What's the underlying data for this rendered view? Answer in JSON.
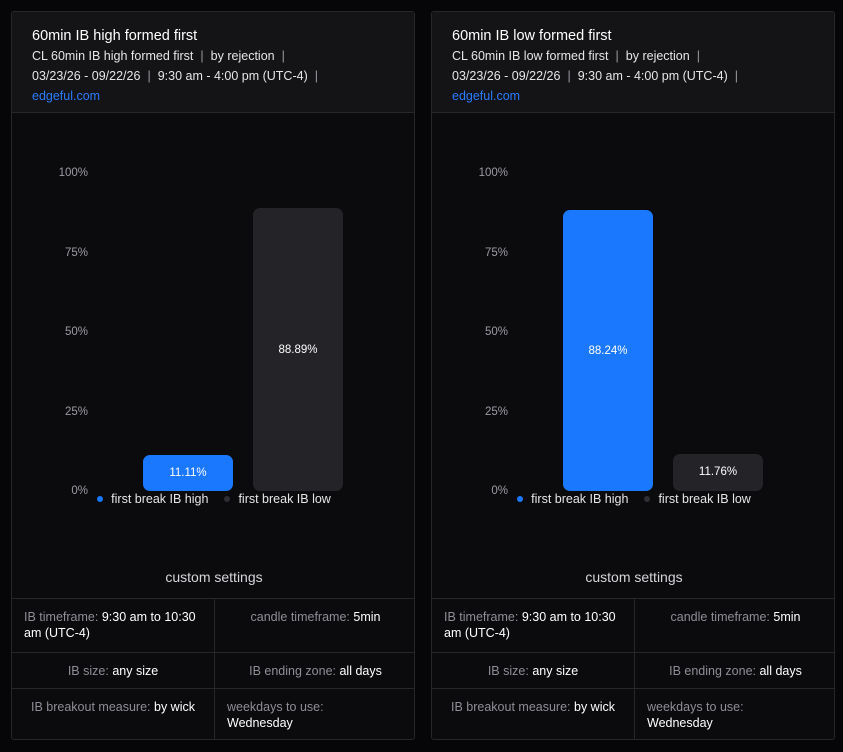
{
  "colors": {
    "accent": "#1a78ff",
    "bar_dark": "#232328",
    "link": "#2b7bff"
  },
  "cards": [
    {
      "title": "60min IB high formed first",
      "meta1": [
        "CL 60min IB high formed first",
        "by rejection"
      ],
      "meta2": [
        "03/23/26 - 09/22/26",
        "9:30 am - 4:00 pm (UTC-4)"
      ],
      "link": "edgeful.com",
      "settings_title": "custom settings",
      "settings": {
        "ib_timeframe": {
          "label": "IB timeframe:",
          "value": "9:30 am to 10:30 am (UTC-4)"
        },
        "candle_timeframe": {
          "label": "candle timeframe:",
          "value": "5min"
        },
        "ib_size": {
          "label": "IB size:",
          "value": "any size"
        },
        "ib_ending_zone": {
          "label": "IB ending zone:",
          "value": "all days"
        },
        "ib_breakout_measure": {
          "label": "IB breakout measure:",
          "value": "by wick"
        },
        "weekdays": {
          "label": "weekdays to use:",
          "value": "Wednesday"
        }
      }
    },
    {
      "title": "60min IB low formed first",
      "meta1": [
        "CL 60min IB low formed first",
        "by rejection"
      ],
      "meta2": [
        "03/23/26 - 09/22/26",
        "9:30 am - 4:00 pm (UTC-4)"
      ],
      "link": "edgeful.com",
      "settings_title": "custom settings",
      "settings": {
        "ib_timeframe": {
          "label": "IB timeframe:",
          "value": "9:30 am to 10:30 am (UTC-4)"
        },
        "candle_timeframe": {
          "label": "candle timeframe:",
          "value": "5min"
        },
        "ib_size": {
          "label": "IB size:",
          "value": "any size"
        },
        "ib_ending_zone": {
          "label": "IB ending zone:",
          "value": "all days"
        },
        "ib_breakout_measure": {
          "label": "IB breakout measure:",
          "value": "by wick"
        },
        "weekdays": {
          "label": "weekdays to use:",
          "value": "Wednesday"
        }
      }
    }
  ],
  "chart_data": [
    {
      "type": "bar",
      "categories": [
        "first break IB high",
        "first break IB low"
      ],
      "values": [
        11.11,
        88.89
      ],
      "data_labels": [
        "11.11%",
        "88.89%"
      ],
      "colors": [
        "#1a78ff",
        "#232328"
      ],
      "yticks": [
        "0%",
        "25%",
        "50%",
        "75%",
        "100%"
      ],
      "ylim": [
        0,
        100
      ],
      "legend": [
        "first break IB high",
        "first break IB low"
      ],
      "legend_position": "bottom",
      "grid": false
    },
    {
      "type": "bar",
      "categories": [
        "first break IB high",
        "first break IB low"
      ],
      "values": [
        88.24,
        11.76
      ],
      "data_labels": [
        "88.24%",
        "11.76%"
      ],
      "colors": [
        "#1a78ff",
        "#232328"
      ],
      "yticks": [
        "0%",
        "25%",
        "50%",
        "75%",
        "100%"
      ],
      "ylim": [
        0,
        100
      ],
      "legend": [
        "first break IB high",
        "first break IB low"
      ],
      "legend_position": "bottom",
      "grid": false
    }
  ]
}
